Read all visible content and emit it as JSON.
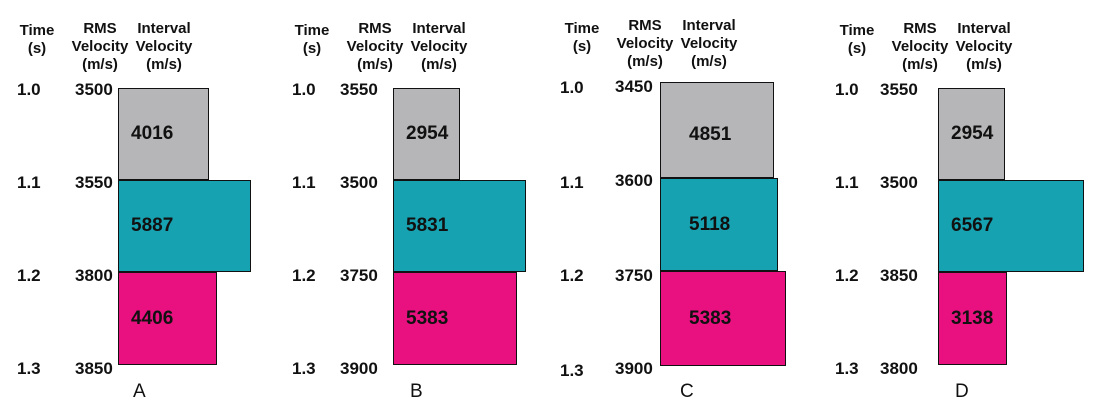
{
  "headers": {
    "time": [
      "Time",
      "(s)"
    ],
    "rms": [
      "RMS",
      "Velocity",
      "(m/s)"
    ],
    "interval": [
      "Interval",
      "Velocity",
      "(m/s)"
    ]
  },
  "colors": {
    "gray": "#b6b6b8",
    "teal": "#16a2b1",
    "magenta": "#e8117f"
  },
  "panels": [
    {
      "label": "A",
      "times": [
        "1.0",
        "1.1",
        "1.2",
        "1.3"
      ],
      "rms": [
        "3500",
        "3550",
        "3800",
        "3850"
      ],
      "intervals": [
        "4016",
        "5887",
        "4406"
      ]
    },
    {
      "label": "B",
      "times": [
        "1.0",
        "1.1",
        "1.2",
        "1.3"
      ],
      "rms": [
        "3550",
        "3500",
        "3750",
        "3900"
      ],
      "intervals": [
        "2954",
        "5831",
        "5383"
      ]
    },
    {
      "label": "C",
      "times": [
        "1.0",
        "1.1",
        "1.2",
        "1.3"
      ],
      "rms": [
        "3450",
        "3600",
        "3750",
        "3900"
      ],
      "intervals": [
        "4851",
        "5118",
        "5383"
      ]
    },
    {
      "label": "D",
      "times": [
        "1.0",
        "1.1",
        "1.2",
        "1.3"
      ],
      "rms": [
        "3550",
        "3500",
        "3850",
        "3800"
      ],
      "intervals": [
        "2954",
        "6567",
        "3138"
      ]
    }
  ]
}
